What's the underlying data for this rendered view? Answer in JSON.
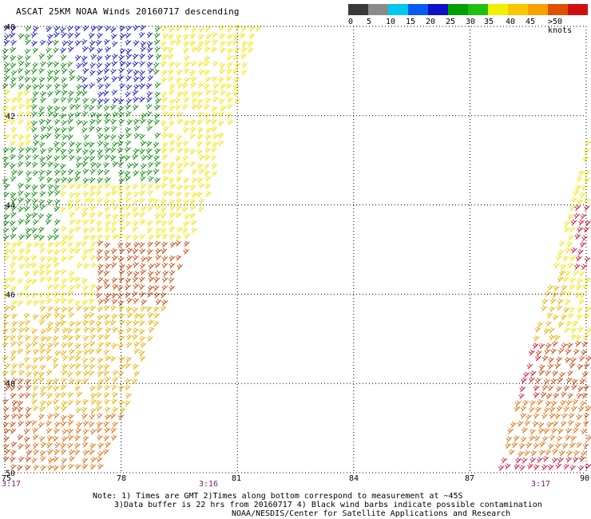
{
  "title": "ASCAT 25KM NOAA Winds 20160717 descending",
  "legend": {
    "labels": [
      "0",
      "5",
      "10",
      "15",
      "20",
      "25",
      "30",
      "35",
      "40",
      "45",
      ">50 knots"
    ],
    "colors": [
      "#3a3a3a",
      "#8a8a8a",
      "#00c8f0",
      "#0a5af0",
      "#1010c8",
      "#00a000",
      "#20c010",
      "#f0f000",
      "#f8c800",
      "#f8a000",
      "#e05000",
      "#d01010",
      "#f01818",
      "#b05a2a",
      "#8b3a14",
      "#e000e0",
      "#b010e0",
      "#6010c0",
      "#400080"
    ]
  },
  "axes": {
    "x_ticks": [
      "75",
      "78",
      "81",
      "84",
      "87",
      "90"
    ],
    "y_ticks": [
      "40",
      "42",
      "44",
      "46",
      "48",
      "50"
    ],
    "lon_range": [
      75,
      90
    ],
    "lat_range": [
      40,
      50
    ]
  },
  "times": [
    "3:17",
    "3:16",
    "3:17"
  ],
  "notes": [
    "Note: 1) Times are GMT 2)Times along bottom correspond to measurement at ~45S",
    "3)Data buffer is 22 hrs from 20160717 4) Black wind barbs indicate possible contamination",
    "NOAA/NESDIS/Center for Satellite Applications and Research"
  ],
  "wind_colors": {
    "blue": "#1a1acc",
    "green": "#109010",
    "yellow": "#f2e400",
    "gold": "#e8b000",
    "orange": "#e07010",
    "darkorange": "#cc4a10",
    "red": "#d01838"
  }
}
